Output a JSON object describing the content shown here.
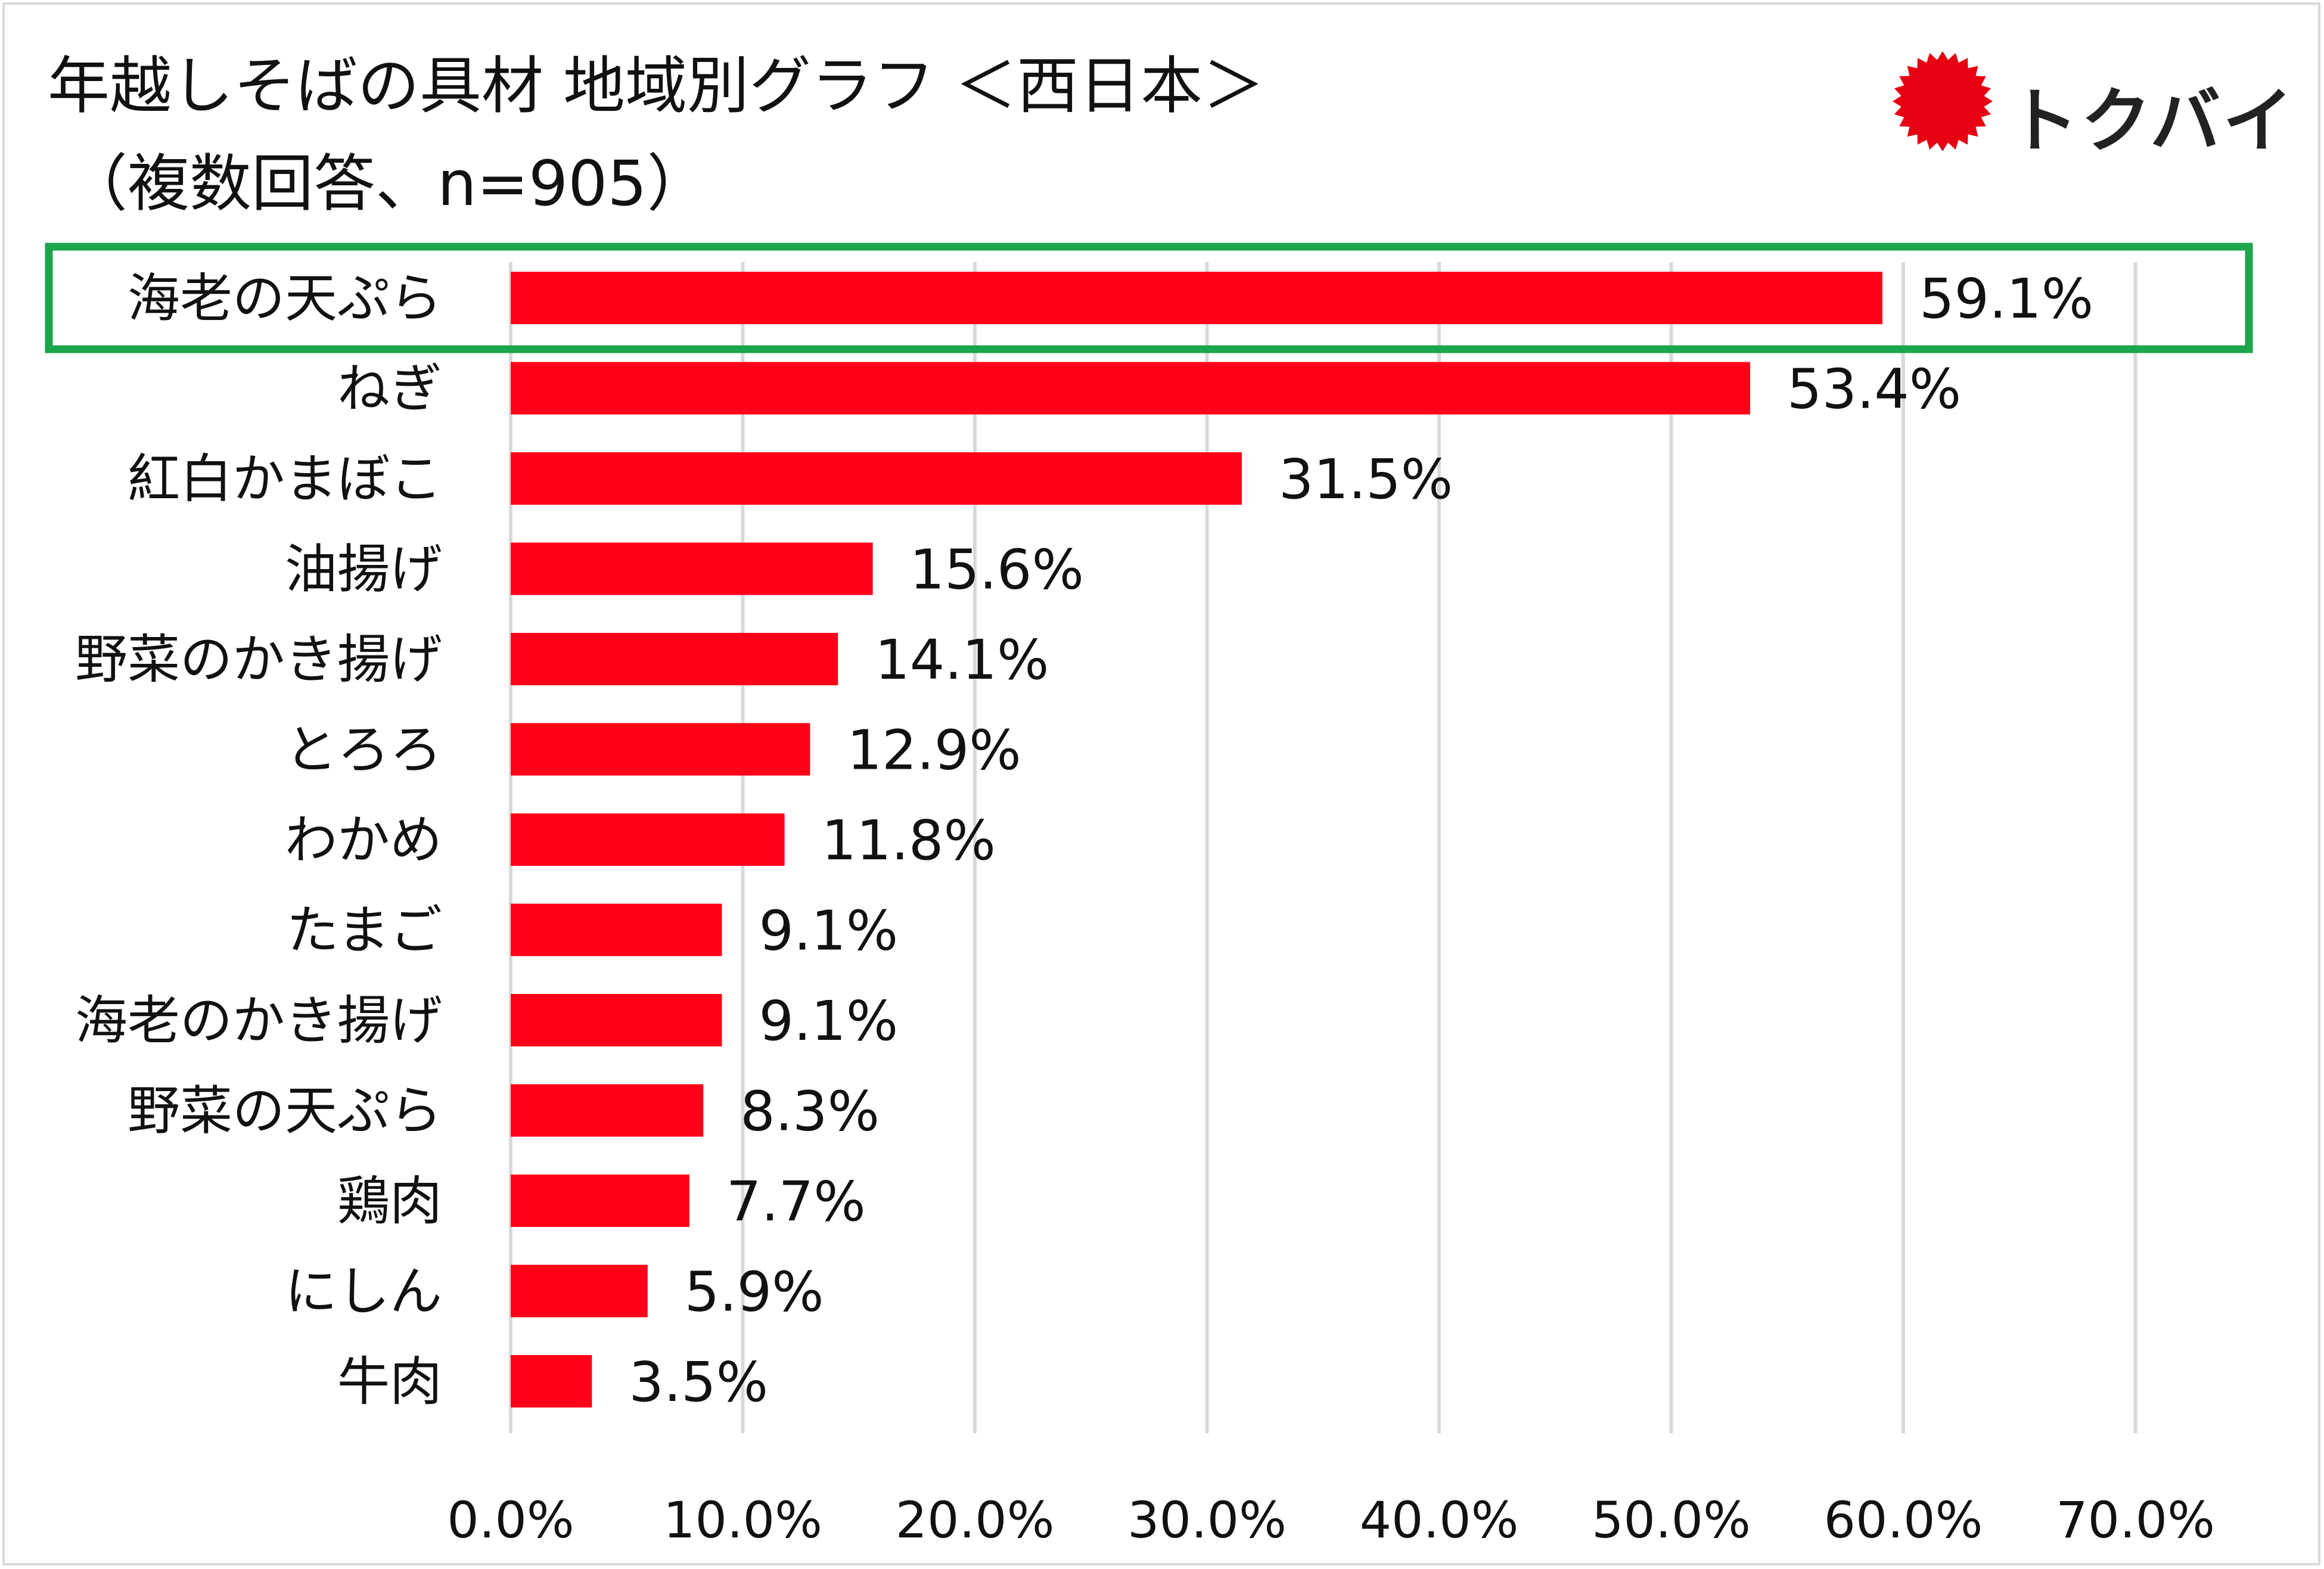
{
  "title": {
    "line1": "年越しそばの具材 地域別グラフ ＜西日本＞",
    "line2": "（複数回答、n=905）"
  },
  "logo": {
    "text": "トクバイ",
    "icon": "red-starburst-icon",
    "color": "#e60012"
  },
  "colors": {
    "bar": "#ff0018",
    "highlight_border": "#1aa64a",
    "grid": "#d9d9d9"
  },
  "chart_data": {
    "type": "bar",
    "orientation": "horizontal",
    "categories": [
      "海老の天ぷら",
      "ねぎ",
      "紅白かまぼこ",
      "油揚げ",
      "野菜のかき揚げ",
      "とろろ",
      "わかめ",
      "たまご",
      "海老のかき揚げ",
      "野菜の天ぷら",
      "鶏肉",
      "にしん",
      "牛肉"
    ],
    "values": [
      59.1,
      53.4,
      31.5,
      15.6,
      14.1,
      12.9,
      11.8,
      9.1,
      9.1,
      8.3,
      7.7,
      5.9,
      3.5
    ],
    "value_labels": [
      "59.1%",
      "53.4%",
      "31.5%",
      "15.6%",
      "14.1%",
      "12.9%",
      "11.8%",
      "9.1%",
      "9.1%",
      "8.3%",
      "7.7%",
      "5.9%",
      "3.5%"
    ],
    "xlim": [
      0,
      70
    ],
    "x_ticks": [
      "0.0%",
      "10.0%",
      "20.0%",
      "30.0%",
      "40.0%",
      "50.0%",
      "60.0%",
      "70.0%"
    ],
    "grid": true,
    "highlighted_category": "海老の天ぷら"
  }
}
